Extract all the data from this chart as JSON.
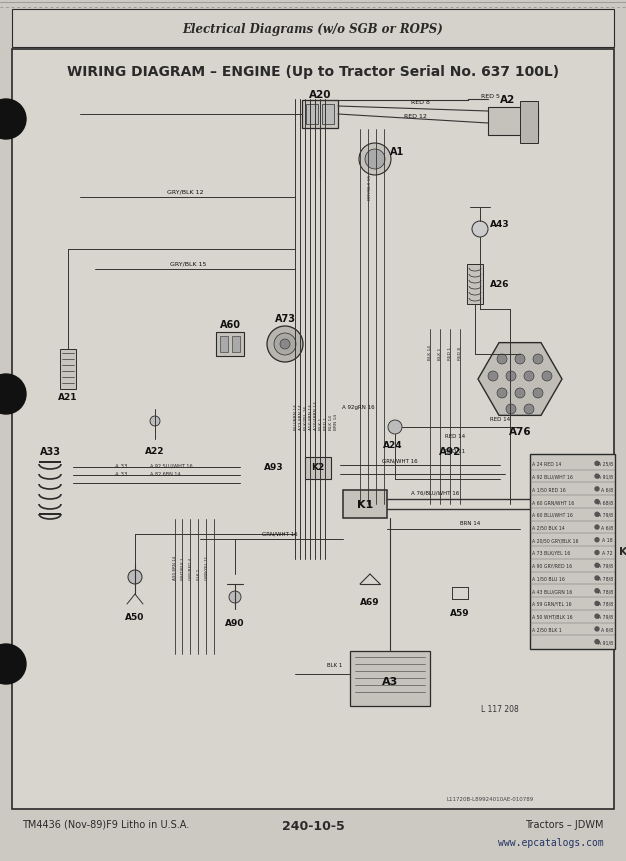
{
  "page_bg": "#d8d5ce",
  "outer_bg": "#c8c5be",
  "header_text": "Electrical Diagrams (w/o SGB or ROPS)",
  "title_text": "WIRING DIAGRAM – ENGINE (Up to Tractor Serial No. 637 100L)",
  "footer_left": "TM4436 (Nov-89)F9 Litho in U.S.A.",
  "footer_center": "240-10-5",
  "footer_right": "Tractors – JDWM",
  "footer_url": "www.epcatalogs.com",
  "label_color": "#111111",
  "line_color": "#333333",
  "diagram_label": "L117208",
  "sub_label": "L11720B-L89924010AE-010789"
}
